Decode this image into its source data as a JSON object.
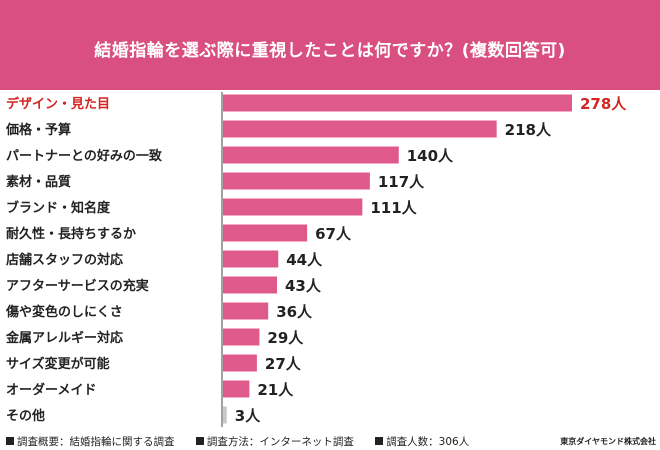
{
  "header": {
    "title": "結婚指輪を選ぶ際に重視したことは何ですか？(複数回答可)"
  },
  "footer": {
    "overview": "調査概要：結婚指輪に関する調査",
    "method": "調査方法：インターネット調査",
    "count": "調査人数：306人",
    "credit": "東京ダイヤモンド株式会社"
  },
  "colors": {
    "header_bg": "#d94f80",
    "bar": "#df5a8a",
    "bar_other": "#c8c8c8",
    "highlight_text": "#d42323"
  },
  "chart_data": {
    "type": "bar",
    "orientation": "horizontal",
    "categories": [
      "デザイン・見た目",
      "価格・予算",
      "パートナーとの好みの一致",
      "素材・品質",
      "ブランド・知名度",
      "耐久性・長持ちするか",
      "店舗スタッフの対応",
      "アフターサービスの充実",
      "傷や変色のしにくさ",
      "金属アレルギー対応",
      "サイズ変更が可能",
      "オーダーメイド",
      "その他"
    ],
    "values": [
      278,
      218,
      140,
      117,
      111,
      67,
      44,
      43,
      36,
      29,
      27,
      21,
      3
    ],
    "value_labels": [
      "278人",
      "218人",
      "140人",
      "117人",
      "111人",
      "67人",
      "44人",
      "43人",
      "36人",
      "29人",
      "27人",
      "21人",
      "3人"
    ],
    "unit": "人",
    "xlim": [
      0,
      278
    ],
    "grid": false,
    "legend": "none"
  }
}
